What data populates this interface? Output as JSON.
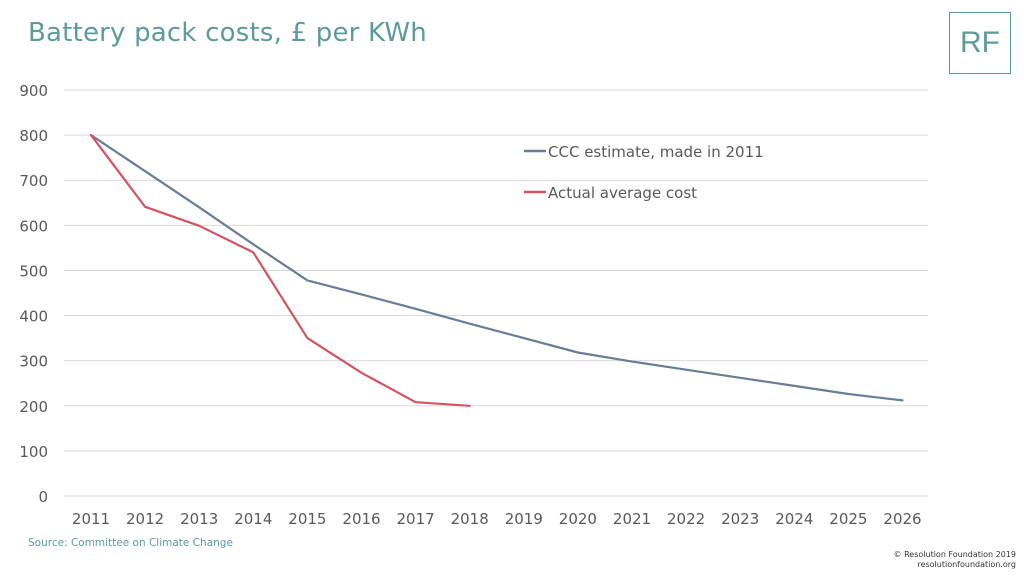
{
  "header": {
    "title": "Battery pack costs, £ per KWh",
    "logo_text": "RF"
  },
  "footer": {
    "source": "Source: Committee on Climate Change",
    "copyright_line1": "© Resolution Foundation 2019",
    "copyright_line2": "resolutionfoundation.org"
  },
  "colors": {
    "title": "#5f9a9a",
    "grid": "#d9d9d9",
    "tick_text": "#595959",
    "ccc_series": "#6a7d96",
    "actual_series": "#d05560"
  },
  "chart_data": {
    "type": "line",
    "title": "Battery pack costs, £ per KWh",
    "xlabel": "",
    "ylabel": "",
    "x": [
      2011,
      2012,
      2013,
      2014,
      2015,
      2016,
      2017,
      2018,
      2019,
      2020,
      2021,
      2022,
      2023,
      2024,
      2025,
      2026
    ],
    "x_tick_labels": [
      "2011",
      "2012",
      "2013",
      "2014",
      "2015",
      "2016",
      "2017",
      "2018",
      "2019",
      "2020",
      "2021",
      "2022",
      "2023",
      "2024",
      "2025",
      "2026"
    ],
    "ylim": [
      0,
      900
    ],
    "y_ticks": [
      0,
      100,
      200,
      300,
      400,
      500,
      600,
      700,
      800,
      900
    ],
    "y_tick_labels": [
      "0",
      "100",
      "200",
      "300",
      "400",
      "500",
      "600",
      "700",
      "800",
      "900"
    ],
    "grid": true,
    "legend_position": "top-right",
    "series": [
      {
        "name": "CCC estimate, made in 2011",
        "color": "#6a7d96",
        "x": [
          2011,
          2012,
          2013,
          2014,
          2015,
          2016,
          2017,
          2018,
          2019,
          2020,
          2021,
          2022,
          2023,
          2024,
          2025,
          2026
        ],
        "values": [
          800,
          720,
          640,
          558,
          478,
          447,
          415,
          382,
          350,
          318,
          298,
          280,
          262,
          244,
          226,
          212
        ]
      },
      {
        "name": "Actual average cost",
        "color": "#d05560",
        "x": [
          2011,
          2012,
          2013,
          2014,
          2015,
          2016,
          2017,
          2018
        ],
        "values": [
          800,
          641,
          599,
          540,
          350,
          273,
          208,
          200
        ]
      }
    ]
  }
}
